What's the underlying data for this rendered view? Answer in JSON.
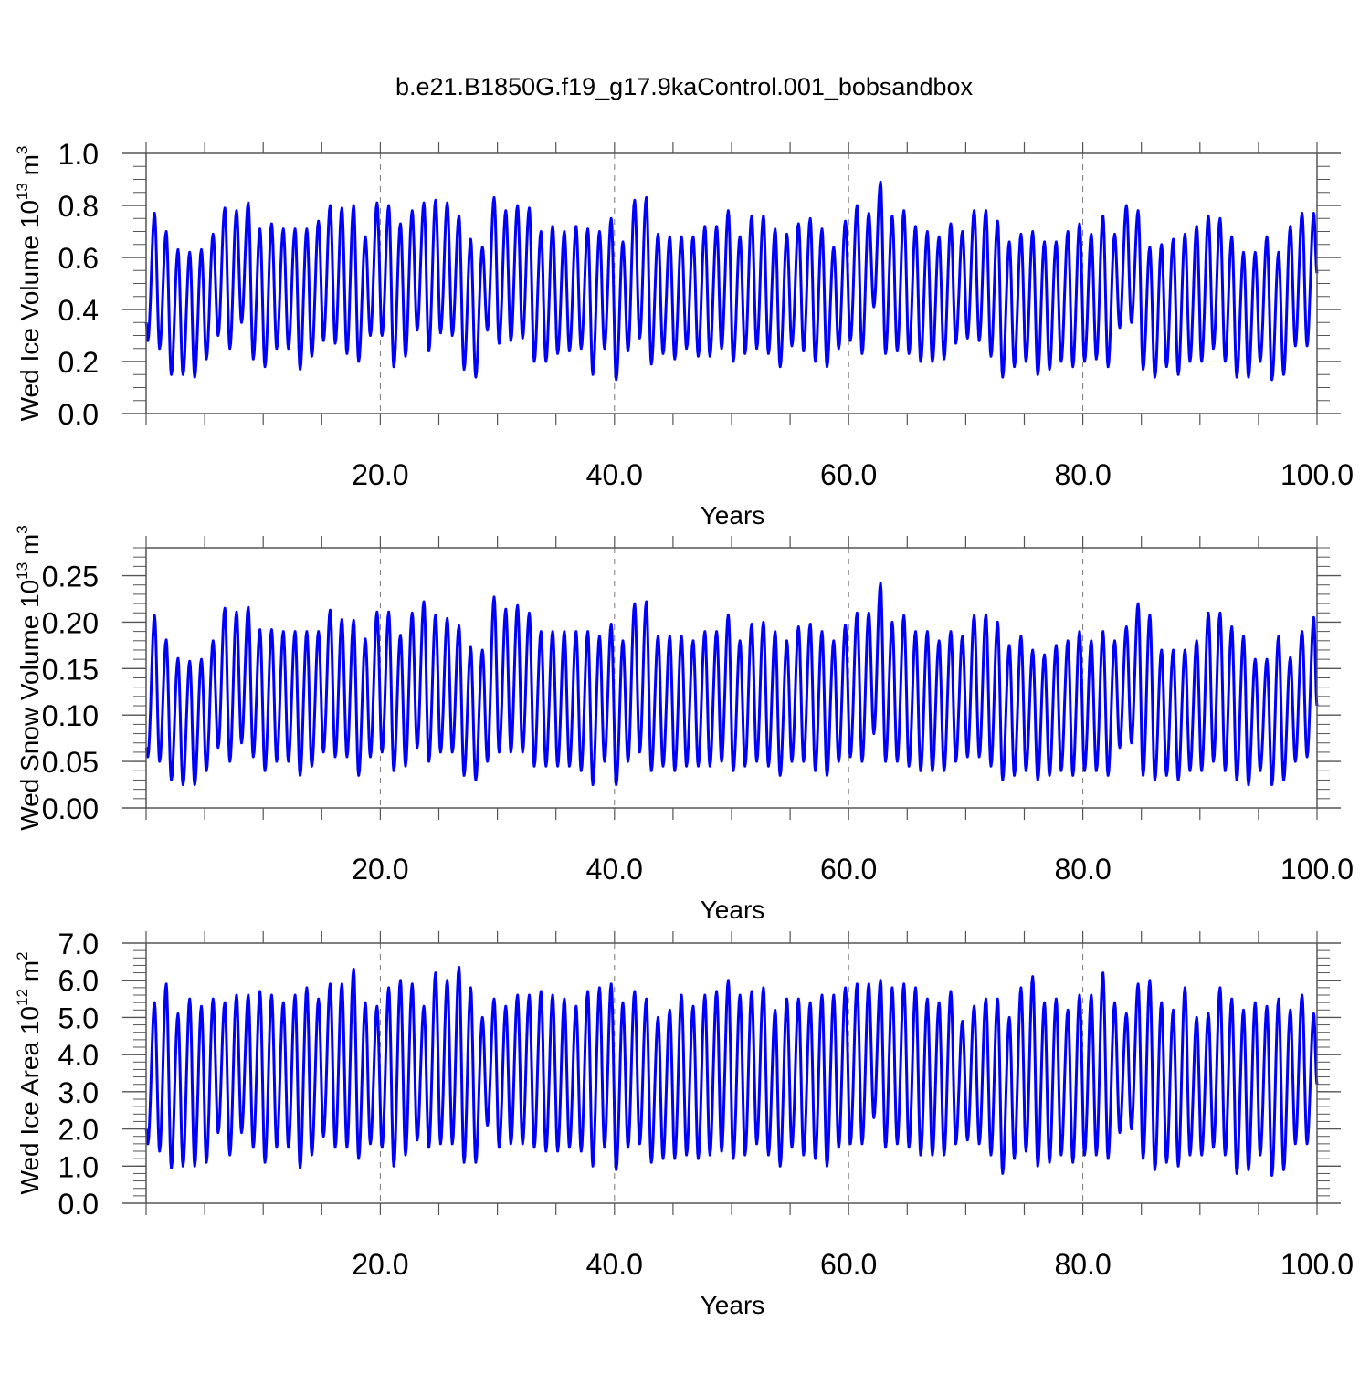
{
  "title": "b.e21.B1850G.f19_g17.9kaControl.001_bobsandbox",
  "line_color": "#0000ff",
  "chart_data": [
    {
      "type": "line",
      "ylabel": "Wed Ice Volume 10",
      "ylabel_exp": "13",
      "ylabel_unit": " m",
      "ylabel_unit_exp": "3",
      "xlabel": "Years",
      "xlim": [
        0,
        100
      ],
      "ylim": [
        0,
        1.0
      ],
      "xticks": [
        20,
        40,
        60,
        80,
        100
      ],
      "xtick_labels": [
        "20.0",
        "40.0",
        "60.0",
        "80.0",
        "100.0"
      ],
      "yticks": [
        0,
        0.2,
        0.4,
        0.6,
        0.8,
        1.0
      ],
      "ytick_labels": [
        "0.0",
        "0.2",
        "0.4",
        "0.6",
        "0.8",
        "1.0"
      ],
      "yminor": 0.05,
      "start_value": 0.35,
      "end_value": 0.54,
      "annual_max": [
        0.77,
        0.7,
        0.63,
        0.62,
        0.63,
        0.69,
        0.79,
        0.78,
        0.81,
        0.71,
        0.73,
        0.71,
        0.71,
        0.71,
        0.74,
        0.8,
        0.79,
        0.8,
        0.68,
        0.81,
        0.8,
        0.73,
        0.78,
        0.81,
        0.82,
        0.81,
        0.76,
        0.67,
        0.64,
        0.83,
        0.78,
        0.8,
        0.79,
        0.7,
        0.72,
        0.7,
        0.72,
        0.71,
        0.7,
        0.75,
        0.66,
        0.82,
        0.83,
        0.69,
        0.68,
        0.68,
        0.68,
        0.72,
        0.72,
        0.78,
        0.68,
        0.76,
        0.76,
        0.71,
        0.69,
        0.73,
        0.75,
        0.71,
        0.64,
        0.74,
        0.8,
        0.77,
        0.89,
        0.76,
        0.78,
        0.72,
        0.7,
        0.68,
        0.73,
        0.7,
        0.78,
        0.78,
        0.74,
        0.66,
        0.69,
        0.7,
        0.66,
        0.66,
        0.7,
        0.73,
        0.69,
        0.76,
        0.69,
        0.8,
        0.78,
        0.64,
        0.65,
        0.67,
        0.69,
        0.72,
        0.76,
        0.75,
        0.68,
        0.62,
        0.62,
        0.68,
        0.62,
        0.72,
        0.77,
        0.77
      ],
      "annual_min": [
        0.28,
        0.25,
        0.15,
        0.15,
        0.14,
        0.21,
        0.3,
        0.25,
        0.35,
        0.21,
        0.18,
        0.25,
        0.25,
        0.17,
        0.22,
        0.28,
        0.27,
        0.23,
        0.2,
        0.3,
        0.3,
        0.18,
        0.22,
        0.32,
        0.24,
        0.31,
        0.3,
        0.17,
        0.14,
        0.32,
        0.27,
        0.28,
        0.29,
        0.2,
        0.2,
        0.23,
        0.24,
        0.25,
        0.15,
        0.25,
        0.13,
        0.24,
        0.29,
        0.19,
        0.23,
        0.21,
        0.25,
        0.22,
        0.22,
        0.25,
        0.2,
        0.23,
        0.25,
        0.23,
        0.18,
        0.26,
        0.24,
        0.2,
        0.18,
        0.25,
        0.28,
        0.23,
        0.41,
        0.23,
        0.24,
        0.23,
        0.2,
        0.2,
        0.21,
        0.27,
        0.29,
        0.28,
        0.22,
        0.14,
        0.18,
        0.2,
        0.15,
        0.17,
        0.2,
        0.18,
        0.2,
        0.21,
        0.18,
        0.33,
        0.35,
        0.17,
        0.14,
        0.18,
        0.15,
        0.2,
        0.2,
        0.25,
        0.2,
        0.14,
        0.14,
        0.2,
        0.13,
        0.15,
        0.26,
        0.26
      ]
    },
    {
      "type": "line",
      "ylabel": "Wed Snow Volume 10",
      "ylabel_exp": "13",
      "ylabel_unit": " m",
      "ylabel_unit_exp": "3",
      "xlabel": "Years",
      "xlim": [
        0,
        100
      ],
      "ylim": [
        0,
        0.28
      ],
      "xticks": [
        20,
        40,
        60,
        80,
        100
      ],
      "xtick_labels": [
        "20.0",
        "40.0",
        "60.0",
        "80.0",
        "100.0"
      ],
      "yticks": [
        0,
        0.05,
        0.1,
        0.15,
        0.2,
        0.25
      ],
      "ytick_labels": [
        "0.00",
        "0.05",
        "0.10",
        "0.15",
        "0.20",
        "0.25"
      ],
      "yminor": 0.01,
      "start_value": 0.065,
      "end_value": 0.11,
      "annual_max": [
        0.207,
        0.181,
        0.161,
        0.158,
        0.16,
        0.18,
        0.215,
        0.211,
        0.216,
        0.192,
        0.192,
        0.19,
        0.19,
        0.19,
        0.19,
        0.213,
        0.203,
        0.202,
        0.182,
        0.211,
        0.211,
        0.186,
        0.21,
        0.222,
        0.208,
        0.204,
        0.196,
        0.173,
        0.17,
        0.227,
        0.214,
        0.218,
        0.21,
        0.19,
        0.19,
        0.19,
        0.19,
        0.19,
        0.185,
        0.198,
        0.18,
        0.22,
        0.222,
        0.185,
        0.185,
        0.185,
        0.18,
        0.19,
        0.19,
        0.208,
        0.18,
        0.198,
        0.2,
        0.19,
        0.18,
        0.195,
        0.198,
        0.19,
        0.18,
        0.197,
        0.21,
        0.21,
        0.242,
        0.2,
        0.207,
        0.19,
        0.19,
        0.18,
        0.19,
        0.185,
        0.207,
        0.208,
        0.2,
        0.175,
        0.185,
        0.17,
        0.165,
        0.175,
        0.18,
        0.19,
        0.18,
        0.19,
        0.18,
        0.195,
        0.22,
        0.208,
        0.17,
        0.17,
        0.17,
        0.18,
        0.21,
        0.21,
        0.195,
        0.185,
        0.16,
        0.16,
        0.185,
        0.162,
        0.19,
        0.205
      ],
      "annual_min": [
        0.055,
        0.05,
        0.03,
        0.025,
        0.025,
        0.04,
        0.065,
        0.05,
        0.07,
        0.055,
        0.04,
        0.05,
        0.05,
        0.035,
        0.045,
        0.06,
        0.055,
        0.055,
        0.035,
        0.055,
        0.06,
        0.04,
        0.045,
        0.065,
        0.05,
        0.06,
        0.06,
        0.035,
        0.03,
        0.05,
        0.06,
        0.06,
        0.06,
        0.045,
        0.045,
        0.045,
        0.045,
        0.04,
        0.025,
        0.05,
        0.025,
        0.05,
        0.06,
        0.04,
        0.045,
        0.04,
        0.045,
        0.045,
        0.045,
        0.05,
        0.04,
        0.045,
        0.05,
        0.045,
        0.035,
        0.05,
        0.05,
        0.04,
        0.035,
        0.05,
        0.055,
        0.05,
        0.08,
        0.05,
        0.05,
        0.045,
        0.04,
        0.04,
        0.04,
        0.05,
        0.055,
        0.055,
        0.045,
        0.03,
        0.035,
        0.04,
        0.03,
        0.035,
        0.04,
        0.035,
        0.04,
        0.04,
        0.035,
        0.065,
        0.07,
        0.035,
        0.03,
        0.035,
        0.03,
        0.04,
        0.04,
        0.05,
        0.04,
        0.03,
        0.025,
        0.04,
        0.025,
        0.03,
        0.05,
        0.055
      ]
    },
    {
      "type": "line",
      "ylabel": "Wed Ice Area 10",
      "ylabel_exp": "12",
      "ylabel_unit": " m",
      "ylabel_unit_exp": "2",
      "xlabel": "Years",
      "xlim": [
        0,
        100
      ],
      "ylim": [
        0,
        7.0
      ],
      "xticks": [
        20,
        40,
        60,
        80,
        100
      ],
      "xtick_labels": [
        "20.0",
        "40.0",
        "60.0",
        "80.0",
        "100.0"
      ],
      "yticks": [
        0,
        1,
        2,
        3,
        4,
        5,
        6,
        7
      ],
      "ytick_labels": [
        "0.0",
        "1.0",
        "2.0",
        "3.0",
        "4.0",
        "5.0",
        "6.0",
        "7.0"
      ],
      "yminor": 0.2,
      "start_value": 2.0,
      "end_value": 3.2,
      "annual_max": [
        5.4,
        5.9,
        5.1,
        5.5,
        5.3,
        5.5,
        5.4,
        5.6,
        5.6,
        5.7,
        5.6,
        5.4,
        5.6,
        5.8,
        5.5,
        5.9,
        5.9,
        6.3,
        5.4,
        5.3,
        5.8,
        6.0,
        5.9,
        5.3,
        6.2,
        6.0,
        6.35,
        5.8,
        5.0,
        5.5,
        5.3,
        5.6,
        5.6,
        5.7,
        5.6,
        5.5,
        5.3,
        5.7,
        5.8,
        5.9,
        5.4,
        5.7,
        5.5,
        5.0,
        5.2,
        5.6,
        5.3,
        5.6,
        5.7,
        6.0,
        5.6,
        5.7,
        5.8,
        5.2,
        5.5,
        5.5,
        5.4,
        5.6,
        5.6,
        5.8,
        5.9,
        5.9,
        6.0,
        5.8,
        5.9,
        5.8,
        5.5,
        5.4,
        5.7,
        4.9,
        5.3,
        5.5,
        5.5,
        5.0,
        5.8,
        6.1,
        5.4,
        5.5,
        5.2,
        5.6,
        5.6,
        6.2,
        5.4,
        5.1,
        5.9,
        6.0,
        5.4,
        5.2,
        5.8,
        5.0,
        5.1,
        5.8,
        5.5,
        5.2,
        5.4,
        5.3,
        5.5,
        5.2,
        5.6,
        5.1
      ],
      "annual_min": [
        1.6,
        1.4,
        0.95,
        1.0,
        1.0,
        1.1,
        1.9,
        1.3,
        1.9,
        1.5,
        1.1,
        1.5,
        1.5,
        0.95,
        1.3,
        1.8,
        1.5,
        1.5,
        1.2,
        1.6,
        1.5,
        1.0,
        1.3,
        1.7,
        1.5,
        1.6,
        1.6,
        1.1,
        1.1,
        2.1,
        1.5,
        1.6,
        1.6,
        1.5,
        1.4,
        1.4,
        1.5,
        1.4,
        1.0,
        1.5,
        0.9,
        1.5,
        1.6,
        1.1,
        1.2,
        1.2,
        1.3,
        1.2,
        1.3,
        1.4,
        1.2,
        1.3,
        1.6,
        1.3,
        1.0,
        1.5,
        1.3,
        1.2,
        1.0,
        1.5,
        1.6,
        1.6,
        2.3,
        1.5,
        1.6,
        1.5,
        1.3,
        1.3,
        1.3,
        1.6,
        1.7,
        1.6,
        1.3,
        0.8,
        1.2,
        1.4,
        1.0,
        1.1,
        1.3,
        1.1,
        1.3,
        1.3,
        1.2,
        1.9,
        2.0,
        1.2,
        0.9,
        1.1,
        1.0,
        1.3,
        1.3,
        1.5,
        1.3,
        0.8,
        0.9,
        1.3,
        0.75,
        0.9,
        1.6,
        1.6
      ]
    }
  ]
}
